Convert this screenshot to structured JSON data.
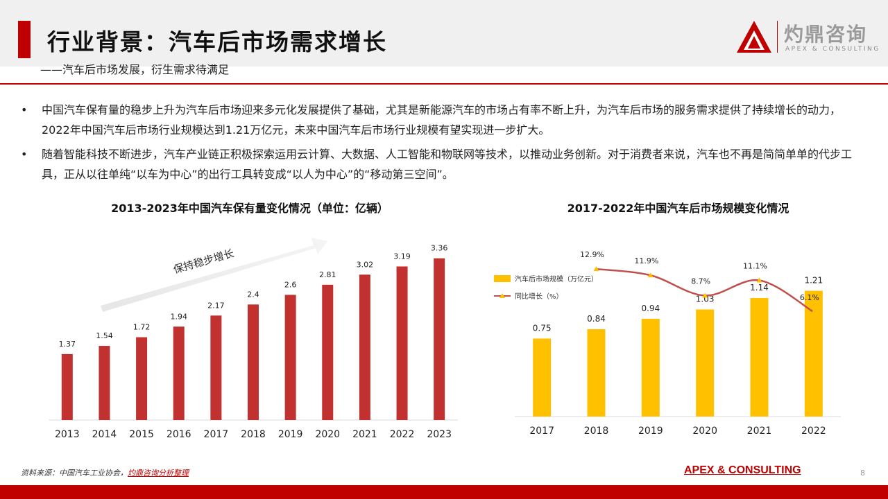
{
  "header": {
    "title": "行业背景：汽车后市场需求增长",
    "subtitle": "——汽车后市场发展，衍生需求待满足"
  },
  "logo": {
    "name": "灼鼎咨询",
    "sub": "APEX & CONSULTING"
  },
  "bullets": [
    {
      "dot": "•",
      "text": "中国汽车保有量的稳步上升为汽车后市场迎来多元化发展提供了基础，尤其是新能源汽车的市场占有率不断上升，为汽车后市场的服务需求提供了持续增长的动力，2022年中国汽车后市场行业规模达到1.21万亿元，未来中国汽车后市场行业规模有望实现进一步扩大。"
    },
    {
      "dot": "•",
      "text": "随着智能科技不断进步，汽车产业链正积极探索运用云计算、大数据、人工智能和物联网等技术，以推动业务创新。对于消费者来说，汽车也不再是简简单单的代步工具，正从以往单纯“以车为中心”的出行工具转变成“以人为中心”的“移动第三空间”。"
    }
  ],
  "colors": {
    "accent": "#c00000",
    "bar_red": "#c0312f",
    "bar_yellow": "#ffc000",
    "line": "#c0504d",
    "marker": "#ffc000"
  },
  "chart_data": [
    {
      "type": "bar",
      "title": "2013-2023年中国汽车保有量变化情况（单位：亿辆）",
      "categories": [
        "2013",
        "2014",
        "2015",
        "2016",
        "2017",
        "2018",
        "2019",
        "2020",
        "2021",
        "2022",
        "2023"
      ],
      "values": [
        1.37,
        1.54,
        1.72,
        1.94,
        2.17,
        2.4,
        2.6,
        2.81,
        3.02,
        3.19,
        3.36
      ],
      "value_labels": [
        "1.37",
        "1.54",
        "1.72",
        "1.94",
        "2.17",
        "2.4",
        "2.6",
        "2.81",
        "3.02",
        "3.19",
        "3.36"
      ],
      "annotation": "保持稳步增长",
      "ylim": [
        0,
        3.6
      ],
      "grid": false
    },
    {
      "type": "bar+line",
      "title": "2017-2022年中国汽车后市场规模变化情况",
      "categories": [
        "2017",
        "2018",
        "2019",
        "2020",
        "2021",
        "2022"
      ],
      "series": [
        {
          "name": "汽车后市场规模（万亿元）",
          "type": "bar",
          "values": [
            0.75,
            0.84,
            0.94,
            1.03,
            1.14,
            1.21
          ],
          "value_labels": [
            "0.75",
            "0.84",
            "0.94",
            "1.03",
            "1.14",
            "1.21"
          ]
        },
        {
          "name": "同比增长（%）",
          "type": "line",
          "x": [
            "2018",
            "2019",
            "2020",
            "2021",
            "2022"
          ],
          "values": [
            12.9,
            11.9,
            8.7,
            11.1,
            6.1
          ],
          "value_labels": [
            "12.9%",
            "11.9%",
            "8.7%",
            "11.1%",
            "6.1%"
          ]
        }
      ],
      "legend": "left",
      "grid": false
    }
  ],
  "footer": {
    "source_prefix": "资料来源：中国汽车工业协会，",
    "source_link": "灼鼎咨询分析整理",
    "brand": "APEX & CONSULTING",
    "page": "8"
  }
}
